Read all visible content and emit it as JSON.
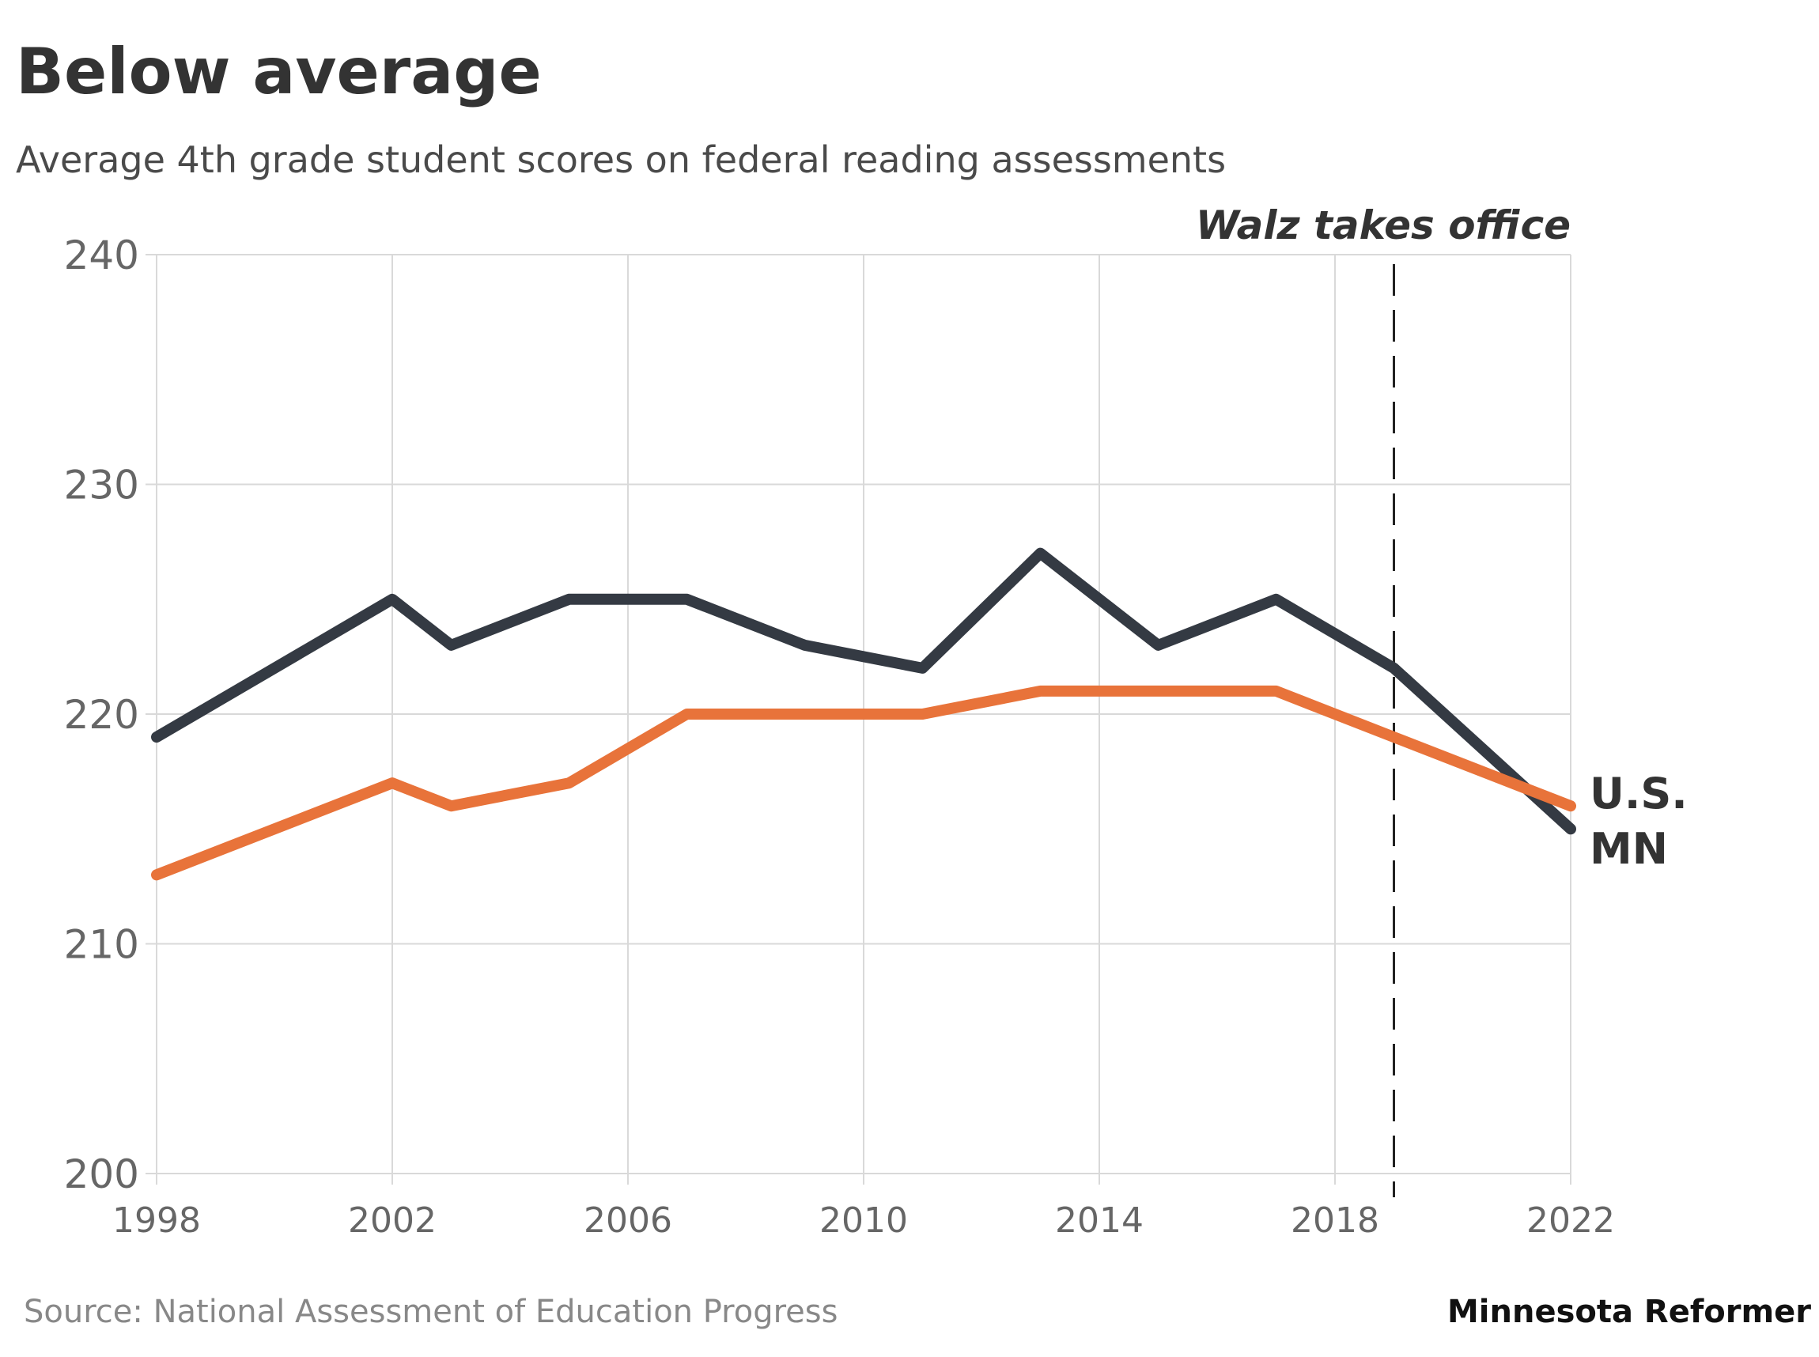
{
  "chart_data": {
    "type": "line",
    "title": "Below average",
    "subtitle": "Average 4th grade student scores on federal reading assessments",
    "xlim": [
      1998,
      2022
    ],
    "ylim": [
      200,
      240
    ],
    "x_ticks": [
      "1998",
      "2002",
      "2006",
      "2010",
      "2014",
      "2018",
      "2022"
    ],
    "y_ticks": [
      "200",
      "210",
      "220",
      "230",
      "240"
    ],
    "grid": true,
    "series": [
      {
        "name": "MN",
        "color": "#343a43",
        "x": [
          1998,
          2002,
          2003,
          2005,
          2007,
          2009,
          2011,
          2013,
          2015,
          2017,
          2019,
          2022
        ],
        "values": [
          219,
          225,
          223,
          225,
          225,
          223,
          222,
          227,
          223,
          225,
          222,
          215
        ]
      },
      {
        "name": "U.S.",
        "color": "#e8733a",
        "x": [
          1998,
          2002,
          2003,
          2005,
          2007,
          2009,
          2011,
          2013,
          2015,
          2017,
          2019,
          2022
        ],
        "values": [
          213,
          217,
          216,
          217,
          220,
          220,
          220,
          221,
          221,
          221,
          219,
          216
        ]
      }
    ],
    "annotations": [
      {
        "x": 2019,
        "label": "Walz takes office"
      }
    ],
    "labels": {
      "us": "U.S.",
      "mn": "MN"
    },
    "source": "Source: National Assessment of Education Progress",
    "credit": "Minnesota Reformer"
  }
}
